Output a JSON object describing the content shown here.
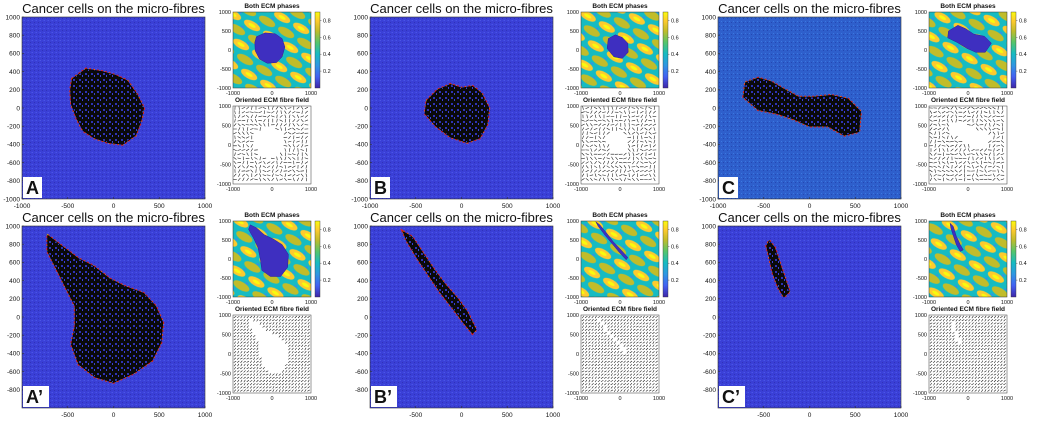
{
  "figure": {
    "main_title": "Cancer cells on the micro-fibres",
    "ecm_title": "Both ECM phases",
    "fibre_title": "Oriented ECM fibre field"
  },
  "colors": {
    "main_bg": "#3a3fd6",
    "main_bg_alt": "#2f5fd0",
    "cells": "#0a0a0a",
    "cell_holes": "#3a3fd6",
    "edge_red": "#e0201c",
    "edge_yellow": "#f2d21a",
    "colormap": [
      "#3e26a8",
      "#4361f3",
      "#2f97e2",
      "#16bbc2",
      "#55c56b",
      "#c1bc2a",
      "#fdca2e",
      "#f9fb0e"
    ]
  },
  "chart_data": [
    {
      "panel_label": "A",
      "type": "heatmap",
      "title": "Cancer cells on the micro-fibres",
      "xlim": [
        -1000,
        1000
      ],
      "ylim": [
        -1000,
        1000
      ],
      "xticks": [
        -1000,
        -500,
        0,
        500,
        1000
      ],
      "yticks": [
        1000,
        800,
        600,
        400,
        200,
        0,
        -200,
        -400,
        -600,
        -800,
        -1000
      ],
      "tumour_outline": [
        [
          -450,
          320
        ],
        [
          -300,
          430
        ],
        [
          -120,
          400
        ],
        [
          20,
          360
        ],
        [
          150,
          300
        ],
        [
          250,
          160
        ],
        [
          330,
          0
        ],
        [
          300,
          -150
        ],
        [
          240,
          -300
        ],
        [
          100,
          -400
        ],
        [
          -60,
          -380
        ],
        [
          -210,
          -330
        ],
        [
          -330,
          -250
        ],
        [
          -400,
          -120
        ],
        [
          -460,
          40
        ],
        [
          -470,
          200
        ]
      ],
      "ecm": {
        "title": "Both ECM phases",
        "colorbar_ticks": [
          0.2,
          0.4,
          0.6,
          0.8
        ],
        "xticks": [
          -1000,
          0,
          1000
        ],
        "yticks": [
          1000,
          500,
          0,
          -500,
          -1000
        ],
        "cavity": [
          [
            -400,
            350
          ],
          [
            -180,
            450
          ],
          [
            80,
            430
          ],
          [
            260,
            300
          ],
          [
            330,
            80
          ],
          [
            260,
            -180
          ],
          [
            120,
            -330
          ],
          [
            -120,
            -350
          ],
          [
            -320,
            -240
          ],
          [
            -430,
            -20
          ],
          [
            -440,
            200
          ]
        ]
      },
      "fibre": {
        "title": "Oriented ECM fibre field",
        "xticks": [
          -1000,
          0,
          1000
        ],
        "yticks": [
          1000,
          500,
          0,
          -500,
          -1000
        ],
        "aligned": false
      }
    },
    {
      "panel_label": "B",
      "type": "heatmap",
      "title": "Cancer cells on the micro-fibres",
      "xlim": [
        -1000,
        1000
      ],
      "ylim": [
        -1000,
        1000
      ],
      "xticks": [
        -1000,
        -500,
        0,
        500,
        1000
      ],
      "yticks": [
        1000,
        800,
        600,
        400,
        200,
        0,
        -200,
        -400,
        -600,
        -800,
        -1000
      ],
      "tumour_outline": [
        [
          -380,
          80
        ],
        [
          -260,
          200
        ],
        [
          -120,
          260
        ],
        [
          0,
          220
        ],
        [
          120,
          240
        ],
        [
          220,
          160
        ],
        [
          300,
          0
        ],
        [
          280,
          -180
        ],
        [
          200,
          -330
        ],
        [
          60,
          -380
        ],
        [
          -120,
          -320
        ],
        [
          -280,
          -200
        ],
        [
          -400,
          -60
        ]
      ],
      "ecm": {
        "title": "Both ECM phases",
        "colorbar_ticks": [
          0.2,
          0.4,
          0.6,
          0.8
        ],
        "xticks": [
          -1000,
          0,
          1000
        ],
        "yticks": [
          1000,
          500,
          0,
          -500,
          -1000
        ],
        "cavity": [
          [
            -300,
            300
          ],
          [
            -120,
            400
          ],
          [
            60,
            330
          ],
          [
            200,
            180
          ],
          [
            210,
            -60
          ],
          [
            60,
            -220
          ],
          [
            -160,
            -180
          ],
          [
            -330,
            40
          ]
        ]
      },
      "fibre": {
        "title": "Oriented ECM fibre field",
        "xticks": [
          -1000,
          0,
          1000
        ],
        "yticks": [
          1000,
          500,
          0,
          -500,
          -1000
        ],
        "aligned": false
      }
    },
    {
      "panel_label": "C",
      "type": "heatmap",
      "title": "Cancer cells on the micro-fibres",
      "xlim": [
        -1000,
        1000
      ],
      "ylim": [
        -1000,
        1000
      ],
      "xticks": [
        -1000,
        -500,
        0,
        500,
        1000
      ],
      "yticks": [
        1000,
        800,
        600,
        400,
        200,
        0,
        -200,
        -400,
        -600,
        -800,
        -1000
      ],
      "tumour_outline": [
        [
          -700,
          280
        ],
        [
          -560,
          330
        ],
        [
          -420,
          290
        ],
        [
          -300,
          220
        ],
        [
          -120,
          120
        ],
        [
          40,
          120
        ],
        [
          240,
          140
        ],
        [
          420,
          100
        ],
        [
          560,
          -40
        ],
        [
          540,
          -260
        ],
        [
          380,
          -300
        ],
        [
          200,
          -200
        ],
        [
          0,
          -200
        ],
        [
          -180,
          -120
        ],
        [
          -360,
          -60
        ],
        [
          -560,
          -20
        ],
        [
          -720,
          120
        ]
      ],
      "ecm": {
        "title": "Both ECM phases",
        "colorbar_ticks": [
          0.2,
          0.4,
          0.6,
          0.8
        ],
        "xticks": [
          -1000,
          0,
          1000
        ],
        "yticks": [
          1000,
          500,
          0,
          -500,
          -1000
        ],
        "cavity": [
          [
            -500,
            500
          ],
          [
            -260,
            650
          ],
          [
            -60,
            560
          ],
          [
            140,
            420
          ],
          [
            420,
            360
          ],
          [
            600,
            180
          ],
          [
            440,
            -60
          ],
          [
            200,
            -60
          ],
          [
            -20,
            40
          ],
          [
            -280,
            200
          ],
          [
            -520,
            320
          ]
        ]
      },
      "fibre": {
        "title": "Oriented ECM fibre field",
        "xticks": [
          -1000,
          0,
          1000
        ],
        "yticks": [
          1000,
          500,
          0,
          -500,
          -1000
        ],
        "aligned": false
      }
    },
    {
      "panel_label": "A’",
      "type": "heatmap",
      "title": "Cancer cells on the micro-fibres",
      "xlim": [
        -1000,
        1000
      ],
      "ylim": [
        -1000,
        1000
      ],
      "xticks": [
        -500,
        0,
        500,
        1000
      ],
      "yticks": [
        1000,
        800,
        600,
        400,
        200,
        0,
        -200,
        -400,
        -600,
        -800
      ],
      "tumour_outline": [
        [
          -720,
          900
        ],
        [
          -540,
          760
        ],
        [
          -380,
          640
        ],
        [
          -220,
          560
        ],
        [
          -40,
          420
        ],
        [
          120,
          340
        ],
        [
          330,
          260
        ],
        [
          460,
          120
        ],
        [
          540,
          -60
        ],
        [
          520,
          -280
        ],
        [
          420,
          -480
        ],
        [
          220,
          -620
        ],
        [
          0,
          -720
        ],
        [
          -200,
          -660
        ],
        [
          -380,
          -520
        ],
        [
          -460,
          -300
        ],
        [
          -420,
          -100
        ],
        [
          -420,
          120
        ],
        [
          -520,
          320
        ],
        [
          -620,
          520
        ],
        [
          -720,
          720
        ]
      ],
      "ecm": {
        "title": "Both ECM phases",
        "colorbar_ticks": [
          0.2,
          0.4,
          0.6,
          0.8
        ],
        "xticks": [
          -1000,
          0,
          1000
        ],
        "yticks": [
          1000,
          500,
          0,
          -500,
          -1000
        ],
        "cavity": [
          [
            -560,
            900
          ],
          [
            -400,
            820
          ],
          [
            -200,
            640
          ],
          [
            40,
            520
          ],
          [
            260,
            380
          ],
          [
            420,
            120
          ],
          [
            400,
            -220
          ],
          [
            220,
            -460
          ],
          [
            -40,
            -460
          ],
          [
            -260,
            -300
          ],
          [
            -300,
            0
          ],
          [
            -360,
            300
          ],
          [
            -480,
            560
          ],
          [
            -600,
            780
          ]
        ]
      },
      "fibre": {
        "title": "Oriented ECM fibre field",
        "xticks": [
          -1000,
          0,
          1000
        ],
        "yticks": [
          1000,
          500,
          0,
          -500,
          -1000
        ],
        "aligned": true
      }
    },
    {
      "panel_label": "B’",
      "type": "heatmap",
      "title": "Cancer cells on the micro-fibres",
      "xlim": [
        -1000,
        1000
      ],
      "ylim": [
        -1000,
        1000
      ],
      "xticks": [
        -500,
        0,
        500,
        1000
      ],
      "yticks": [
        1000,
        800,
        600,
        400,
        200,
        0,
        -200,
        -400,
        -600,
        -800
      ],
      "tumour_outline": [
        [
          -640,
          940
        ],
        [
          -540,
          880
        ],
        [
          -420,
          700
        ],
        [
          -300,
          520
        ],
        [
          -180,
          360
        ],
        [
          -40,
          200
        ],
        [
          60,
          60
        ],
        [
          160,
          -140
        ],
        [
          120,
          -180
        ],
        [
          20,
          -60
        ],
        [
          -100,
          100
        ],
        [
          -240,
          280
        ],
        [
          -360,
          460
        ],
        [
          -480,
          640
        ],
        [
          -600,
          840
        ]
      ],
      "ecm": {
        "title": "Both ECM phases",
        "colorbar_ticks": [
          0.2,
          0.4,
          0.6,
          0.8
        ],
        "xticks": [
          -1000,
          0,
          1000
        ],
        "yticks": [
          1000,
          500,
          0,
          -500,
          -1000
        ],
        "cavity": [
          [
            -620,
            980
          ],
          [
            -520,
            900
          ],
          [
            -360,
            700
          ],
          [
            -180,
            460
          ],
          [
            40,
            220
          ],
          [
            200,
            40
          ],
          [
            160,
            -20
          ],
          [
            -20,
            180
          ],
          [
            -200,
            400
          ],
          [
            -380,
            620
          ],
          [
            -560,
            860
          ]
        ]
      },
      "fibre": {
        "title": "Oriented ECM fibre field",
        "xticks": [
          -1000,
          0,
          1000
        ],
        "yticks": [
          1000,
          500,
          0,
          -500,
          -1000
        ],
        "aligned": true
      }
    },
    {
      "panel_label": "C’",
      "type": "heatmap",
      "title": "Cancer cells on the micro-fibres",
      "xlim": [
        -1000,
        1000
      ],
      "ylim": [
        -1000,
        1000
      ],
      "xticks": [
        -500,
        0,
        500,
        1000
      ],
      "yticks": [
        1000,
        800,
        600,
        400,
        200,
        0,
        -200,
        -400,
        -600,
        -800
      ],
      "tumour_outline": [
        [
          -440,
          840
        ],
        [
          -380,
          760
        ],
        [
          -320,
          580
        ],
        [
          -260,
          400
        ],
        [
          -220,
          280
        ],
        [
          -280,
          220
        ],
        [
          -340,
          320
        ],
        [
          -400,
          480
        ],
        [
          -440,
          660
        ],
        [
          -470,
          780
        ]
      ],
      "ecm": {
        "title": "Both ECM phases",
        "colorbar_ticks": [
          0.2,
          0.4,
          0.6,
          0.8
        ],
        "xticks": [
          -1000,
          0,
          1000
        ],
        "yticks": [
          1000,
          500,
          0,
          -500,
          -1000
        ],
        "cavity": [
          [
            -460,
            940
          ],
          [
            -380,
            860
          ],
          [
            -300,
            600
          ],
          [
            -200,
            380
          ],
          [
            -120,
            240
          ],
          [
            -200,
            200
          ],
          [
            -300,
            380
          ],
          [
            -380,
            620
          ],
          [
            -440,
            820
          ]
        ]
      },
      "fibre": {
        "title": "Oriented ECM fibre field",
        "xticks": [
          -1000,
          0,
          1000
        ],
        "yticks": [
          1000,
          500,
          0,
          -500,
          -1000
        ],
        "aligned": true
      }
    }
  ]
}
